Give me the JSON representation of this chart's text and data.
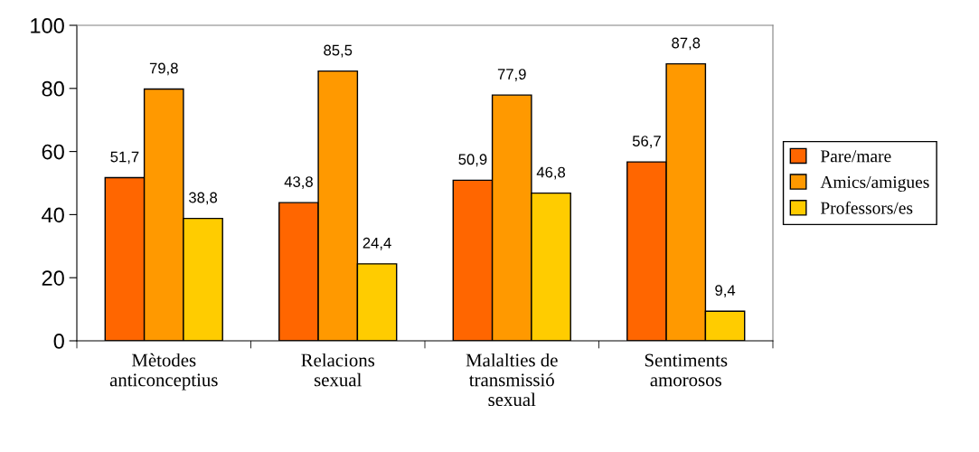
{
  "chart_data": {
    "type": "bar",
    "categories": [
      "Mètodes\nanticonceptius",
      "Relacions\nsexual",
      "Malalties de\ntransmissió\nsexual",
      "Sentiments\namorosos"
    ],
    "series": [
      {
        "name": "Pare/mare",
        "color": "#ff6600",
        "values": [
          51.7,
          43.8,
          50.9,
          56.7
        ],
        "value_labels": [
          "51,7",
          "43,8",
          "50,9",
          "56,7"
        ]
      },
      {
        "name": "Amics/amigues",
        "color": "#ff9900",
        "values": [
          79.8,
          85.5,
          77.9,
          87.8
        ],
        "value_labels": [
          "79,8",
          "85,5",
          "77,9",
          "87,8"
        ]
      },
      {
        "name": "Professors/es",
        "color": "#ffcc00",
        "values": [
          38.8,
          24.4,
          46.8,
          9.4
        ],
        "value_labels": [
          "38,8",
          "24,4",
          "46,8",
          "9,4"
        ]
      }
    ],
    "ylim": [
      0,
      100
    ],
    "yticks": [
      0,
      20,
      40,
      60,
      80,
      100
    ],
    "grid": false,
    "legend": "right"
  }
}
